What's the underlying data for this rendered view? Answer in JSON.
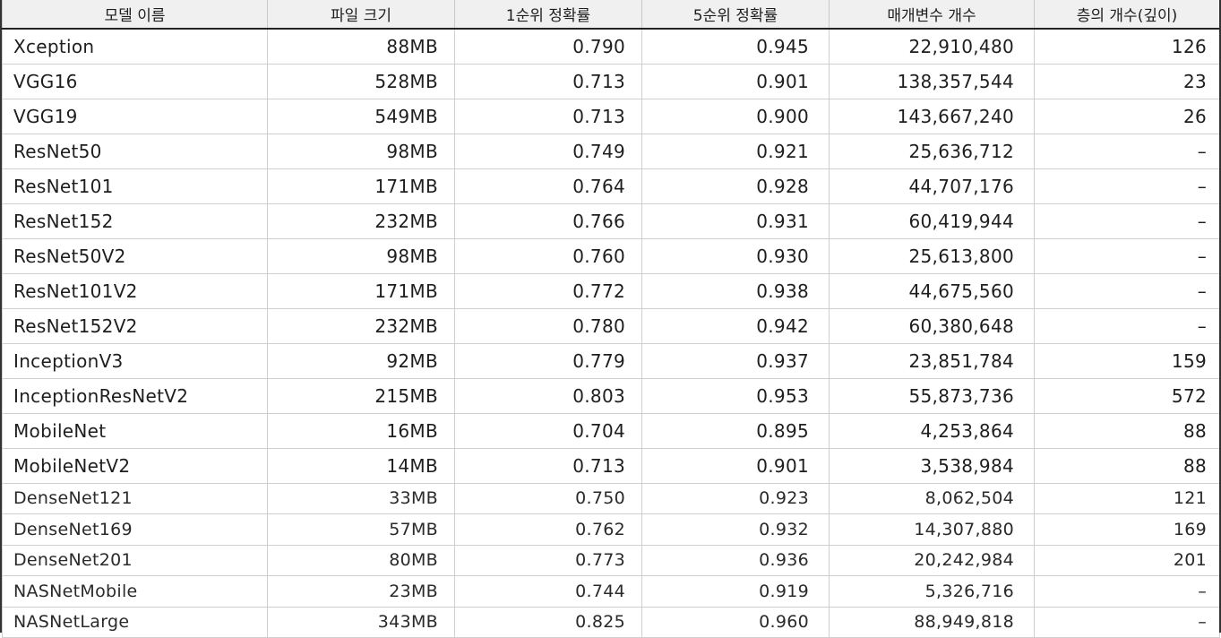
{
  "table": {
    "headers": [
      "모델 이름",
      "파일 크기",
      "1순위 정확률",
      "5순위 정확률",
      "매개변수 개수",
      "층의 개수(깊이)"
    ],
    "rows": [
      [
        "Xception",
        "88MB",
        "0.790",
        "0.945",
        "22,910,480",
        "126"
      ],
      [
        "VGG16",
        "528MB",
        "0.713",
        "0.901",
        "138,357,544",
        "23"
      ],
      [
        "VGG19",
        "549MB",
        "0.713",
        "0.900",
        "143,667,240",
        "26"
      ],
      [
        "ResNet50",
        "98MB",
        "0.749",
        "0.921",
        "25,636,712",
        "–"
      ],
      [
        "ResNet101",
        "171MB",
        "0.764",
        "0.928",
        "44,707,176",
        "–"
      ],
      [
        "ResNet152",
        "232MB",
        "0.766",
        "0.931",
        "60,419,944",
        "–"
      ],
      [
        "ResNet50V2",
        "98MB",
        "0.760",
        "0.930",
        "25,613,800",
        "–"
      ],
      [
        "ResNet101V2",
        "171MB",
        "0.772",
        "0.938",
        "44,675,560",
        "–"
      ],
      [
        "ResNet152V2",
        "232MB",
        "0.780",
        "0.942",
        "60,380,648",
        "–"
      ],
      [
        "InceptionV3",
        "92MB",
        "0.779",
        "0.937",
        "23,851,784",
        "159"
      ],
      [
        "InceptionResNetV2",
        "215MB",
        "0.803",
        "0.953",
        "55,873,736",
        "572"
      ],
      [
        "MobileNet",
        "16MB",
        "0.704",
        "0.895",
        "4,253,864",
        "88"
      ],
      [
        "MobileNetV2",
        "14MB",
        "0.713",
        "0.901",
        "3,538,984",
        "88"
      ],
      [
        "DenseNet121",
        "33MB",
        "0.750",
        "0.923",
        "8,062,504",
        "121"
      ],
      [
        "DenseNet169",
        "57MB",
        "0.762",
        "0.932",
        "14,307,880",
        "169"
      ],
      [
        "DenseNet201",
        "80MB",
        "0.773",
        "0.936",
        "20,242,984",
        "201"
      ],
      [
        "NASNetMobile",
        "23MB",
        "0.744",
        "0.919",
        "5,326,716",
        "–"
      ],
      [
        "NASNetLarge",
        "343MB",
        "0.825",
        "0.960",
        "88,949,818",
        "–"
      ]
    ]
  }
}
